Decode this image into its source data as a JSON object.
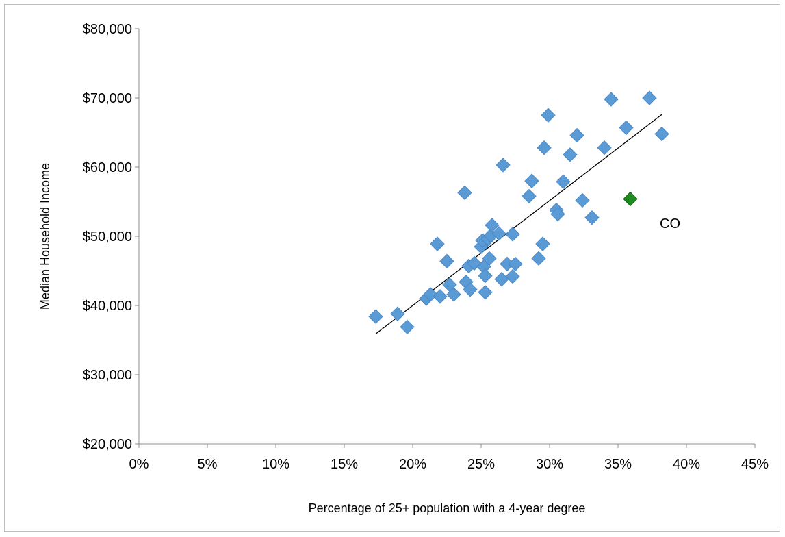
{
  "chart_data": {
    "type": "scatter",
    "title": "",
    "xlabel": "Percentage of 25+ population with a 4-year degree",
    "ylabel": "Median Household Income",
    "xlim": [
      0,
      45
    ],
    "ylim": [
      20000,
      80000
    ],
    "x_ticks": [
      0,
      5,
      10,
      15,
      20,
      25,
      30,
      35,
      40,
      45
    ],
    "x_tick_labels": [
      "0%",
      "5%",
      "10%",
      "15%",
      "20%",
      "25%",
      "30%",
      "35%",
      "40%",
      "45%"
    ],
    "y_ticks": [
      20000,
      30000,
      40000,
      50000,
      60000,
      70000,
      80000
    ],
    "y_tick_labels": [
      "$20,000",
      "$30,000",
      "$40,000",
      "$50,000",
      "$60,000",
      "$70,000",
      "$80,000"
    ],
    "grid": false,
    "legend": "none",
    "marker": "diamond",
    "series": [
      {
        "color": "#5b9bd5",
        "points": [
          [
            17.3,
            38400
          ],
          [
            18.9,
            38800
          ],
          [
            19.6,
            36900
          ],
          [
            21.0,
            41000
          ],
          [
            21.3,
            41600
          ],
          [
            21.8,
            48900
          ],
          [
            22.0,
            41300
          ],
          [
            22.5,
            46400
          ],
          [
            22.7,
            43000
          ],
          [
            23.0,
            41600
          ],
          [
            23.8,
            56300
          ],
          [
            23.9,
            43400
          ],
          [
            24.2,
            42300
          ],
          [
            24.1,
            45700
          ],
          [
            24.5,
            46100
          ],
          [
            25.0,
            48500
          ],
          [
            25.1,
            49400
          ],
          [
            25.2,
            45600
          ],
          [
            25.3,
            44300
          ],
          [
            25.3,
            41900
          ],
          [
            25.5,
            49600
          ],
          [
            25.6,
            46800
          ],
          [
            25.7,
            50100
          ],
          [
            25.8,
            51600
          ],
          [
            26.3,
            50400
          ],
          [
            26.5,
            43800
          ],
          [
            26.6,
            60300
          ],
          [
            26.9,
            46000
          ],
          [
            27.3,
            50300
          ],
          [
            27.3,
            44200
          ],
          [
            27.5,
            46000
          ],
          [
            28.5,
            55800
          ],
          [
            28.7,
            58000
          ],
          [
            29.2,
            46800
          ],
          [
            29.5,
            48900
          ],
          [
            29.6,
            62800
          ],
          [
            29.9,
            67500
          ],
          [
            30.5,
            53800
          ],
          [
            30.6,
            53200
          ],
          [
            31.0,
            57900
          ],
          [
            31.5,
            61800
          ],
          [
            32.0,
            64600
          ],
          [
            32.4,
            55200
          ],
          [
            33.1,
            52700
          ],
          [
            34.0,
            62800
          ],
          [
            34.5,
            69800
          ],
          [
            35.6,
            65700
          ],
          [
            37.3,
            70000
          ],
          [
            38.2,
            64800
          ]
        ]
      },
      {
        "name": "CO",
        "color": "#1e8c1e",
        "points": [
          [
            35.9,
            55400
          ]
        ]
      }
    ],
    "trendline": {
      "x": [
        17.3,
        38.2
      ],
      "y": [
        35900,
        67600
      ],
      "color": "#000000"
    },
    "annotations": [
      {
        "text": "CO"
      }
    ]
  }
}
